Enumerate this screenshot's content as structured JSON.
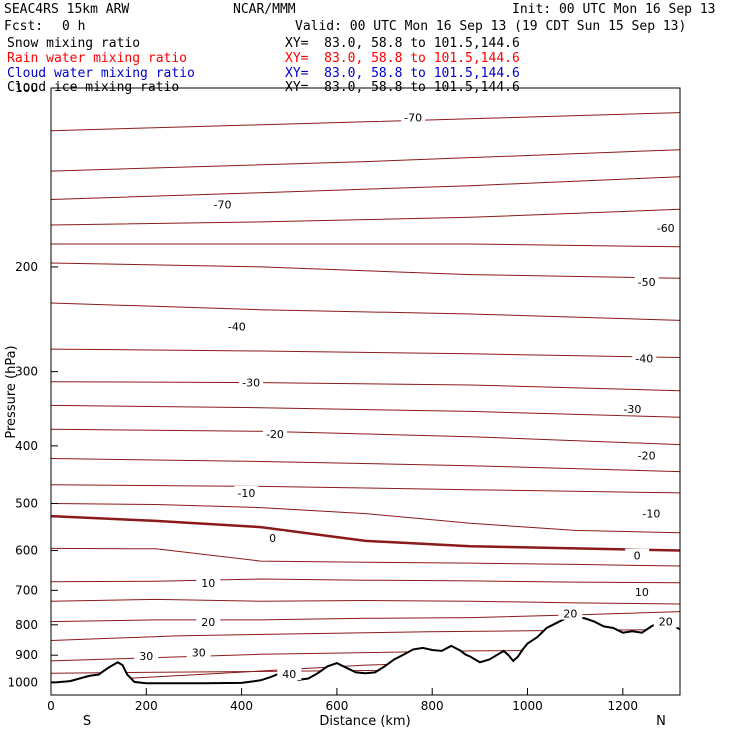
{
  "header": {
    "model": "SEAC4RS 15km ARW",
    "org": "NCAR/MMM",
    "init": "Init: 00 UTC Mon 16 Sep 13",
    "fcst_label": "Fcst:",
    "fcst_value": "0 h",
    "valid": "Valid: 00 UTC Mon 16 Sep 13 (19 CDT Sun 15 Sep 13)"
  },
  "fields": [
    {
      "name": "Snow mixing ratio",
      "xy": "XY=  83.0, 58.8 to 101.5,144.6",
      "color": "#000000"
    },
    {
      "name": "Rain water mixing ratio",
      "xy": "XY=  83.0, 58.8 to 101.5,144.6",
      "color": "#ff0000"
    },
    {
      "name": "Cloud water mixing ratio",
      "xy": "XY=  83.0, 58.8 to 101.5,144.6",
      "color": "#0000cc"
    },
    {
      "name": "Cloud ice mixing ratio",
      "xy": "XY=  83.0, 58.8 to 101.5,144.6",
      "color": "#000000"
    }
  ],
  "chart_data": {
    "type": "line",
    "xlabel": "Distance (km)",
    "ylabel": "Pressure (hPa)",
    "xlim": [
      0,
      1320
    ],
    "ylim": [
      1050,
      100
    ],
    "y_scale": "log",
    "x_ticks": [
      0,
      200,
      400,
      600,
      800,
      1000,
      1200
    ],
    "y_ticks": [
      100,
      200,
      300,
      400,
      500,
      600,
      700,
      800,
      900,
      1000
    ],
    "end_labels": {
      "left": "S",
      "right": "N"
    },
    "contour_color": "#8b1a1a",
    "terrain_color": "#000000",
    "isotherm_interval_C": 5,
    "isotherm_labels": [
      {
        "text": "-70",
        "x": 760,
        "p": 112
      },
      {
        "text": "-70",
        "x": 360,
        "p": 157
      },
      {
        "text": "-60",
        "x": 1290,
        "p": 172
      },
      {
        "text": "-50",
        "x": 1250,
        "p": 212
      },
      {
        "text": "-40",
        "x": 390,
        "p": 252
      },
      {
        "text": "-40",
        "x": 1245,
        "p": 285
      },
      {
        "text": "-30",
        "x": 420,
        "p": 313
      },
      {
        "text": "-30",
        "x": 1220,
        "p": 347
      },
      {
        "text": "-20",
        "x": 470,
        "p": 382
      },
      {
        "text": "-20",
        "x": 1250,
        "p": 415
      },
      {
        "text": "-10",
        "x": 410,
        "p": 480
      },
      {
        "text": "-10",
        "x": 1260,
        "p": 520
      },
      {
        "text": "0",
        "x": 465,
        "p": 572
      },
      {
        "text": "0",
        "x": 1230,
        "p": 612
      },
      {
        "text": "10",
        "x": 330,
        "p": 681
      },
      {
        "text": "10",
        "x": 1240,
        "p": 705
      },
      {
        "text": "20",
        "x": 330,
        "p": 792
      },
      {
        "text": "20",
        "x": 1090,
        "p": 766
      },
      {
        "text": "20",
        "x": 1290,
        "p": 790
      },
      {
        "text": "30",
        "x": 200,
        "p": 902
      },
      {
        "text": "30",
        "x": 310,
        "p": 890
      },
      {
        "text": "40",
        "x": 500,
        "p": 968
      }
    ],
    "terrain": {
      "name": "terrain",
      "x": [
        0,
        10,
        40,
        60,
        80,
        100,
        120,
        140,
        150,
        160,
        175,
        190,
        200,
        260,
        320,
        400,
        440,
        460,
        480,
        500,
        520,
        540,
        560,
        580,
        600,
        620,
        640,
        660,
        680,
        700,
        720,
        740,
        760,
        780,
        800,
        820,
        840,
        860,
        870,
        880,
        890,
        900,
        920,
        940,
        950,
        960,
        970,
        980,
        990,
        1000,
        1020,
        1040,
        1060,
        1080,
        1100,
        1120,
        1140,
        1160,
        1180,
        1200,
        1220,
        1240,
        1260,
        1280,
        1300,
        1320
      ],
      "p": [
        1000,
        1000,
        995,
        985,
        975,
        970,
        945,
        925,
        935,
        970,
        998,
        1001,
        1003,
        1003,
        1003,
        1002,
        992,
        980,
        966,
        972,
        990,
        985,
        965,
        940,
        928,
        945,
        962,
        965,
        962,
        940,
        915,
        898,
        880,
        875,
        882,
        885,
        868,
        885,
        898,
        905,
        915,
        925,
        915,
        895,
        885,
        900,
        920,
        905,
        880,
        860,
        840,
        810,
        795,
        780,
        778,
        780,
        790,
        805,
        810,
        825,
        820,
        825,
        805,
        790,
        795,
        815
      ]
    },
    "isotherms": [
      {
        "level": -70,
        "p": [
          118,
          114,
          110
        ]
      },
      {
        "level": -65,
        "p": [
          138,
          133,
          127
        ]
      },
      {
        "level": -60,
        "p": [
          154,
          150,
          146,
          141
        ]
      },
      {
        "level": -55,
        "p": [
          170,
          168,
          165,
          160
        ]
      },
      {
        "level": -50,
        "p": [
          183,
          183,
          183,
          185
        ]
      },
      {
        "level": -45,
        "p": [
          197,
          200,
          206,
          209
        ]
      },
      {
        "level": -40,
        "p": [
          230,
          236,
          240,
          246
        ]
      },
      {
        "level": -35,
        "p": [
          275,
          277,
          280,
          284
        ]
      },
      {
        "level": -30,
        "p": [
          312,
          313,
          316,
          323
        ]
      },
      {
        "level": -25,
        "p": [
          342,
          345,
          350,
          358
        ]
      },
      {
        "level": -20,
        "p": [
          375,
          378,
          386,
          398
        ]
      },
      {
        "level": -15,
        "p": [
          420,
          425,
          432,
          442
        ]
      },
      {
        "level": -10,
        "p": [
          465,
          468,
          474,
          480
        ]
      },
      {
        "level": -5,
        "p": [
          500,
          502,
          508,
          520,
          540,
          555,
          560
        ]
      },
      {
        "level": 0,
        "p": [
          525,
          535,
          548,
          578,
          590,
          595,
          600
        ]
      },
      {
        "level": 5,
        "p": [
          595,
          596,
          625,
          628,
          630,
          633,
          637
        ]
      },
      {
        "level": 10,
        "p": [
          677,
          676,
          670,
          673,
          675,
          678,
          680
        ]
      },
      {
        "level": 15,
        "p": [
          730,
          725,
          730,
          728,
          730,
          735,
          738
        ]
      },
      {
        "level": 20,
        "p": [
          790,
          785,
          785,
          780,
          778,
          770,
          760
        ]
      },
      {
        "level": 25,
        "p": [
          850,
          835,
          828,
          822,
          818,
          815
        ]
      },
      {
        "level": 30,
        "p": [
          920,
          897,
          885,
          880
        ]
      },
      {
        "level": 35,
        "p": [
          1000,
          968,
          935,
          920,
          925
        ]
      },
      {
        "level": 40,
        "p": [
          965,
          955,
          948
        ]
      }
    ]
  }
}
